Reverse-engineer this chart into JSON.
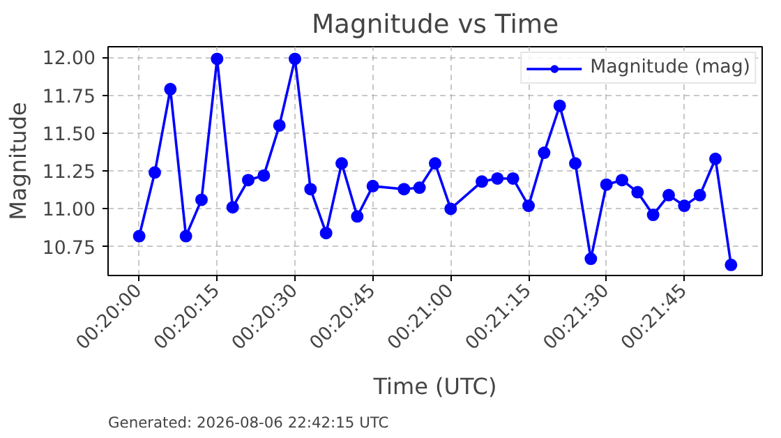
{
  "chart_data": {
    "type": "line",
    "title": "Magnitude vs Time",
    "xlabel": "Time (UTC)",
    "ylabel": "Magnitude",
    "annotations": [
      "Generated: 2026-08-06 22:42:15 UTC"
    ],
    "x": [
      0.333333,
      0.334167,
      0.335,
      0.335833,
      0.336667,
      0.3375,
      0.338333,
      0.339167,
      0.34,
      0.340833,
      0.341667,
      0.3425,
      0.343333,
      0.344167,
      0.345,
      0.345833,
      0.3475,
      0.348333,
      0.349167,
      0.35,
      0.351667,
      0.3525,
      0.353333,
      0.354167,
      0.355,
      0.355833,
      0.356667,
      0.3575,
      0.358333,
      0.359167,
      0.36,
      0.360833,
      0.361667,
      0.3625,
      0.363333,
      0.364167,
      0.365
    ],
    "series": [
      {
        "name": "Magnitude (mag)",
        "color": "#0000ff",
        "values": [
          10.82,
          11.24,
          11.79,
          10.82,
          11.06,
          11.99,
          11.01,
          11.19,
          11.22,
          11.55,
          11.99,
          11.13,
          10.84,
          11.3,
          10.95,
          11.15,
          11.13,
          11.14,
          11.3,
          11.0,
          11.18,
          11.2,
          11.2,
          11.02,
          11.37,
          11.68,
          11.3,
          10.67,
          11.16,
          11.19,
          11.11,
          10.96,
          11.09,
          11.02,
          11.09,
          11.33,
          10.63
        ]
      }
    ],
    "xlim": [
      0.331667,
      0.366667
    ],
    "xticks": [
      {
        "value": 0.333333,
        "label": "00:20:00"
      },
      {
        "value": 0.3375,
        "label": "00:20:15"
      },
      {
        "value": 0.341667,
        "label": "00:20:30"
      },
      {
        "value": 0.345833,
        "label": "00:20:45"
      },
      {
        "value": 0.35,
        "label": "00:21:00"
      },
      {
        "value": 0.354167,
        "label": "00:21:15"
      },
      {
        "value": 0.358333,
        "label": "00:21:30"
      },
      {
        "value": 0.3625,
        "label": "00:21:45"
      }
    ],
    "ylim": [
      10.56,
      12.07
    ],
    "yticks": [
      {
        "value": 10.75,
        "label": "10.75"
      },
      {
        "value": 11.0,
        "label": "11.00"
      },
      {
        "value": 11.25,
        "label": "11.25"
      },
      {
        "value": 11.5,
        "label": "11.50"
      },
      {
        "value": 11.75,
        "label": "11.75"
      },
      {
        "value": 12.0,
        "label": "12.00"
      }
    ],
    "grid": true,
    "legend": "top right",
    "marker": "circle",
    "line_style": "solid"
  }
}
